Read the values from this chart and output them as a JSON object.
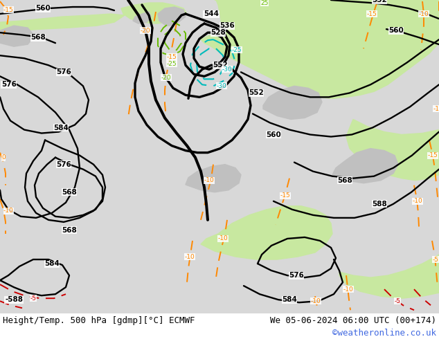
{
  "title_left": "Height/Temp. 500 hPa [gdmp][°C] ECMWF",
  "title_right": "We 05-06-2024 06:00 UTC (00+174)",
  "credit": "©weatheronline.co.uk",
  "bg_color": "#e8e8e8",
  "land_green": "#c8e8a0",
  "land_gray": "#c0c0c0",
  "ocean_gray": "#d8d8d8",
  "black": "#000000",
  "orange": "#ff8800",
  "red": "#cc0000",
  "cyan": "#00bbbb",
  "green_contour": "#66bb00",
  "credit_color": "#4169e1",
  "title_fontsize": 9,
  "figsize": [
    6.34,
    4.9
  ],
  "dpi": 100
}
